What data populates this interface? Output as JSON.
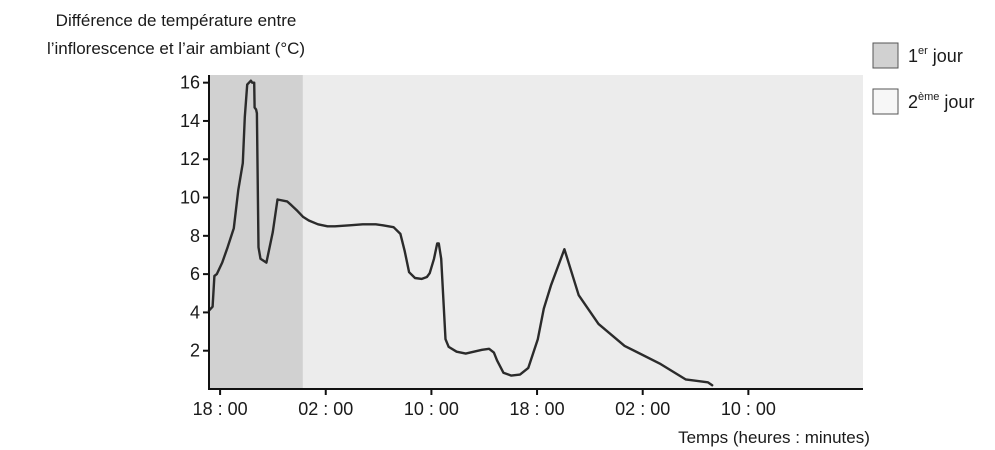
{
  "chart_data": {
    "type": "line",
    "ylabel_lines": [
      "Différence de température entre",
      "l’inflorescence et l’air ambiant (°C)"
    ],
    "xlabel": "Temps (heures : minutes)",
    "x_unit": "hours",
    "xlim": [
      -0.84,
      48.68
    ],
    "ylim": [
      0,
      16.4
    ],
    "x_ticks": [
      {
        "label": "18 : 00",
        "value": 0
      },
      {
        "label": "02 : 00",
        "value": 8
      },
      {
        "label": "10 : 00",
        "value": 16
      },
      {
        "label": "18 : 00",
        "value": 24
      },
      {
        "label": "02 : 00",
        "value": 32
      },
      {
        "label": "10 : 00",
        "value": 40
      }
    ],
    "y_ticks": [
      2,
      4,
      6,
      8,
      10,
      12,
      14,
      16
    ],
    "grid": false,
    "shaded_regions": [
      {
        "legend": "1er jour",
        "x_from": -0.84,
        "x_to": 6.27,
        "color": "#d1d1d1"
      },
      {
        "legend": "2ème jour",
        "x_from": 6.27,
        "x_to": 48.68,
        "color": "#ececec"
      }
    ],
    "legend": [
      {
        "base": "1",
        "sup": "er",
        "text": " jour",
        "color": "#d1d1d1"
      },
      {
        "base": "2",
        "sup": "ème",
        "text": " jour",
        "color": "#f7f7f7"
      }
    ],
    "series": [
      {
        "color": "#2b2b2b",
        "x": [
          -0.84,
          -0.57,
          -0.43,
          -0.25,
          0.16,
          0.57,
          1.04,
          1.38,
          1.72,
          1.87,
          2.05,
          2.33,
          2.43,
          2.58,
          2.61,
          2.73,
          2.79,
          2.91,
          3.06,
          3.51,
          3.99,
          4.35,
          5.07,
          5.4,
          5.85,
          6.27,
          6.72,
          7.41,
          8.13,
          8.7,
          9.81,
          10.8,
          11.79,
          12.33,
          13.14,
          13.65,
          13.98,
          14.31,
          14.76,
          15.27,
          15.66,
          15.87,
          16.2,
          16.44,
          16.56,
          16.74,
          17.07,
          17.31,
          17.91,
          18.6,
          19.83,
          20.37,
          20.73,
          20.97,
          21.45,
          22.05,
          22.71,
          23.34,
          24.06,
          24.51,
          25.05,
          26.07,
          27.15,
          28.65,
          30.63,
          33.36,
          35.25,
          36.93,
          37.26
        ],
        "y": [
          4.1,
          4.3,
          5.9,
          6.0,
          6.6,
          7.4,
          8.4,
          10.4,
          11.8,
          14.2,
          15.9,
          16.1,
          16.0,
          16.0,
          14.7,
          14.6,
          14.4,
          7.4,
          6.8,
          6.6,
          8.2,
          9.9,
          9.8,
          9.6,
          9.3,
          9.0,
          8.8,
          8.6,
          8.5,
          8.5,
          8.55,
          8.6,
          8.6,
          8.55,
          8.45,
          8.1,
          7.2,
          6.1,
          5.8,
          5.75,
          5.85,
          6.05,
          6.8,
          7.6,
          7.6,
          6.8,
          2.6,
          2.2,
          1.95,
          1.85,
          2.05,
          2.1,
          1.9,
          1.5,
          0.85,
          0.7,
          0.75,
          1.1,
          2.6,
          4.2,
          5.4,
          7.3,
          4.9,
          3.4,
          2.25,
          1.3,
          0.5,
          0.35,
          0.2
        ]
      }
    ]
  }
}
